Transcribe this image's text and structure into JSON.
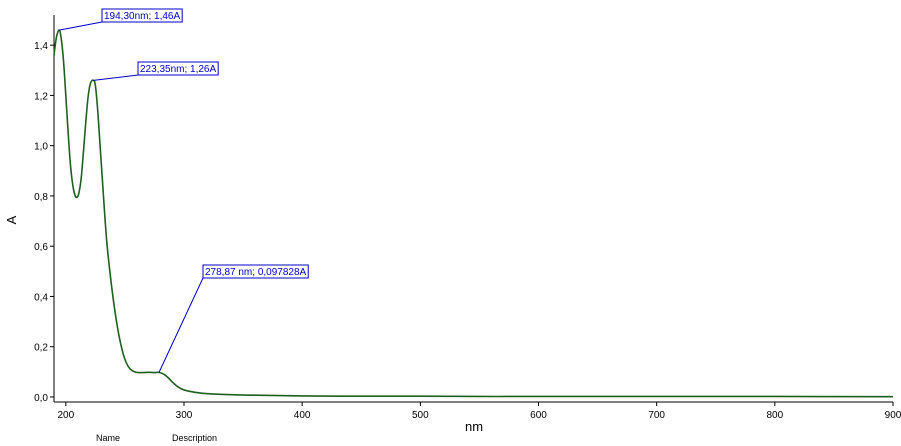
{
  "chart_data": {
    "type": "line",
    "xlabel": "nm",
    "ylabel": "A",
    "xlim": [
      190,
      900
    ],
    "ylim": [
      -0.02,
      1.52
    ],
    "x_ticks": [
      {
        "value": 200,
        "label": "200"
      },
      {
        "value": 300,
        "label": "300"
      },
      {
        "value": 400,
        "label": "400"
      },
      {
        "value": 500,
        "label": "500"
      },
      {
        "value": 600,
        "label": "600"
      },
      {
        "value": 700,
        "label": "700"
      },
      {
        "value": 800,
        "label": "800"
      },
      {
        "value": 900,
        "label": "900"
      }
    ],
    "y_ticks": [
      {
        "value": 0.0,
        "label": "0,0"
      },
      {
        "value": 0.2,
        "label": "0,2"
      },
      {
        "value": 0.4,
        "label": "0,4"
      },
      {
        "value": 0.6,
        "label": "0,6"
      },
      {
        "value": 0.8,
        "label": "0,8"
      },
      {
        "value": 1.0,
        "label": "1,0"
      },
      {
        "value": 1.2,
        "label": "1,2"
      },
      {
        "value": 1.4,
        "label": "1,4"
      }
    ],
    "line_color": "#1f5f1f",
    "annotation_color": "#0000cc",
    "series": [
      {
        "x": [
          190,
          192,
          194.3,
          196,
          198,
          200,
          202,
          204,
          206,
          208,
          209.5,
          211,
          213,
          215,
          217,
          219,
          221,
          223.35,
          225,
          227,
          229,
          231,
          233,
          235,
          238,
          241,
          244,
          247,
          250,
          253,
          256,
          260,
          265,
          270,
          275,
          278.87,
          283,
          287,
          290,
          295,
          300,
          310,
          320,
          340,
          360,
          400,
          450,
          500,
          550,
          600,
          700,
          800,
          900
        ],
        "y": [
          1.36,
          1.43,
          1.46,
          1.43,
          1.34,
          1.2,
          1.05,
          0.92,
          0.84,
          0.8,
          0.795,
          0.81,
          0.87,
          0.98,
          1.1,
          1.2,
          1.25,
          1.26,
          1.24,
          1.14,
          1.0,
          0.86,
          0.72,
          0.6,
          0.47,
          0.36,
          0.27,
          0.2,
          0.15,
          0.12,
          0.105,
          0.098,
          0.097,
          0.098,
          0.097,
          0.097828,
          0.09,
          0.075,
          0.06,
          0.04,
          0.028,
          0.018,
          0.013,
          0.009,
          0.007,
          0.004,
          0.003,
          0.003,
          0.002,
          0.002,
          0.002,
          0.002,
          0.001
        ]
      }
    ],
    "annotations": [
      {
        "text": "194,30nm; 1,46A",
        "x": 194.3,
        "y": 1.46
      },
      {
        "text": "223,35nm; 1,26A",
        "x": 223.35,
        "y": 1.26
      },
      {
        "text": "278,87 nm; 0,097828A",
        "x": 278.87,
        "y": 0.097828
      }
    ]
  },
  "legend_table": {
    "name_header": "Name",
    "description_header": "Description"
  }
}
